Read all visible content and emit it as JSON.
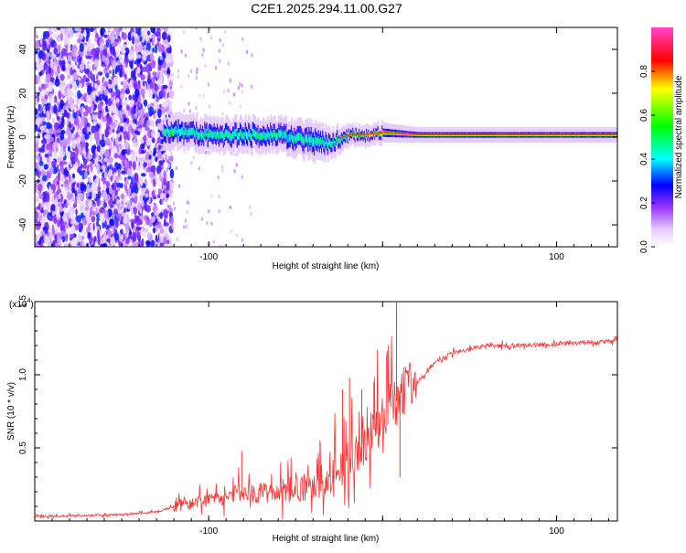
{
  "title": "C2E1.2025.294.11.00.G27",
  "chart_data": [
    {
      "type": "heatmap",
      "name": "spectrogram",
      "xlabel": "Height of straight line (km)",
      "ylabel": "Frequency (Hz)",
      "xlim": [
        -200,
        135
      ],
      "ylim": [
        -50,
        50
      ],
      "xticks": [
        -100,
        0,
        100
      ],
      "xtick_labels": [
        "-100",
        "",
        "100"
      ],
      "yticks": [
        40,
        20,
        0,
        -20,
        -40
      ],
      "ytick_labels": [
        "40",
        "20",
        "0",
        "-20",
        "-40"
      ],
      "noise_region_x": [
        -200,
        -125
      ],
      "signal_band": {
        "x": [
          -125,
          -100,
          -80,
          -60,
          -40,
          -30,
          -20,
          -10,
          0,
          20,
          135
        ],
        "center_hz": [
          3,
          1,
          1,
          1,
          -2,
          -3,
          1,
          1,
          2,
          1,
          1
        ],
        "half_width_hz": [
          6,
          6,
          6,
          6,
          7,
          5,
          3,
          3,
          3,
          2,
          2
        ]
      },
      "colorbar": {
        "label": "Normalized spectral amplitude",
        "range": [
          0,
          1
        ],
        "ticks": [
          "0.0",
          "0.2",
          "0.4",
          "0.6",
          "0.8"
        ],
        "tick_values": [
          0,
          0.2,
          0.4,
          0.6,
          0.8
        ]
      }
    },
    {
      "type": "line",
      "name": "snr",
      "xlabel": "Height of straight line (km)",
      "ylabel": "SNR (10 * v/v)",
      "multiplier_label": "(x10",
      "multiplier_exp": "4",
      "xlim": [
        -200,
        135
      ],
      "ylim": [
        0,
        1.5
      ],
      "xticks": [
        -100,
        0,
        100
      ],
      "xtick_labels": [
        "-100",
        "",
        "100"
      ],
      "yticks": [
        1.5,
        1.0,
        0.5
      ],
      "ytick_labels": [
        "1.5",
        "1.0",
        "0.5"
      ],
      "color": "#ff3333",
      "trend": {
        "x": [
          -200,
          -160,
          -130,
          -120,
          -100,
          -80,
          -60,
          -40,
          -30,
          -20,
          -10,
          0,
          10,
          20,
          30,
          40,
          60,
          80,
          100,
          135
        ],
        "y": [
          0.03,
          0.04,
          0.06,
          0.1,
          0.15,
          0.18,
          0.2,
          0.24,
          0.28,
          0.4,
          0.55,
          0.7,
          0.85,
          0.95,
          1.08,
          1.15,
          1.2,
          1.2,
          1.21,
          1.23
        ]
      },
      "spikes": [
        {
          "x": -81,
          "y": 0.48
        },
        {
          "x": -36,
          "y": 0.55
        },
        {
          "x": -23,
          "y": 0.9
        },
        {
          "x": -19,
          "y": 0.98
        },
        {
          "x": -12,
          "y": 0.9
        },
        {
          "x": -5,
          "y": 0.95
        },
        {
          "x": 3,
          "y": 1.0
        },
        {
          "x": 8,
          "y": 1.5
        },
        {
          "x": 10,
          "y": 0.3
        }
      ]
    }
  ]
}
